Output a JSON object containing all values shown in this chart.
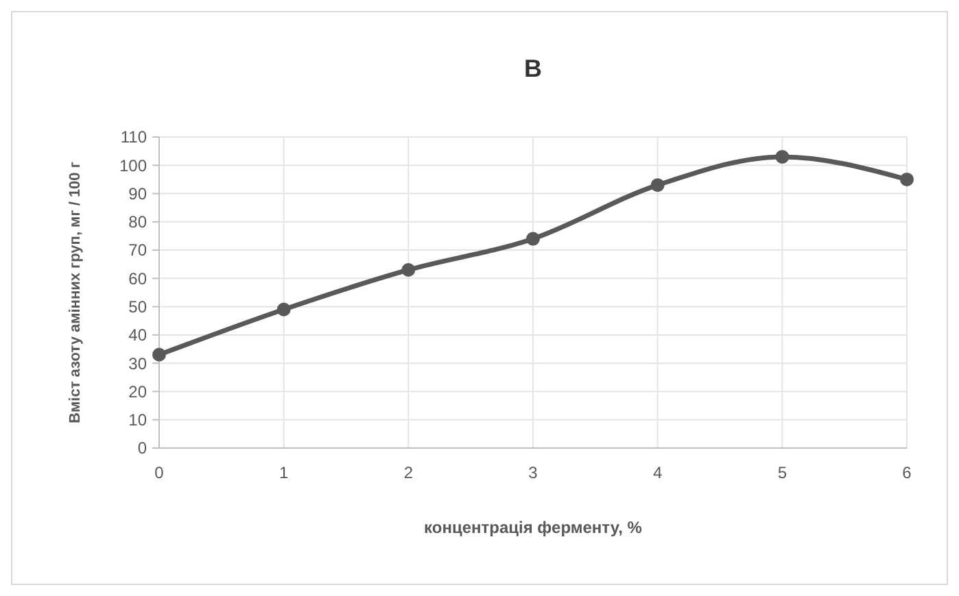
{
  "chart_data": {
    "type": "line",
    "title": "B",
    "xlabel": "концентрація ферменту, %",
    "ylabel": "Вміст азоту амінних груп, мг  / 100 г",
    "x": [
      0,
      1,
      2,
      3,
      4,
      5,
      6
    ],
    "series": [
      {
        "color": "#595959",
        "values": [
          33,
          49,
          63,
          74,
          93,
          103,
          95
        ]
      }
    ],
    "xlim": [
      0,
      6
    ],
    "xticks": [
      0,
      1,
      2,
      3,
      4,
      5,
      6
    ],
    "ylim": [
      0,
      110
    ],
    "yticks": [
      0,
      10,
      20,
      30,
      40,
      50,
      60,
      70,
      80,
      90,
      100,
      110
    ],
    "grid": true,
    "marker": "circle",
    "line_style": "solid"
  }
}
